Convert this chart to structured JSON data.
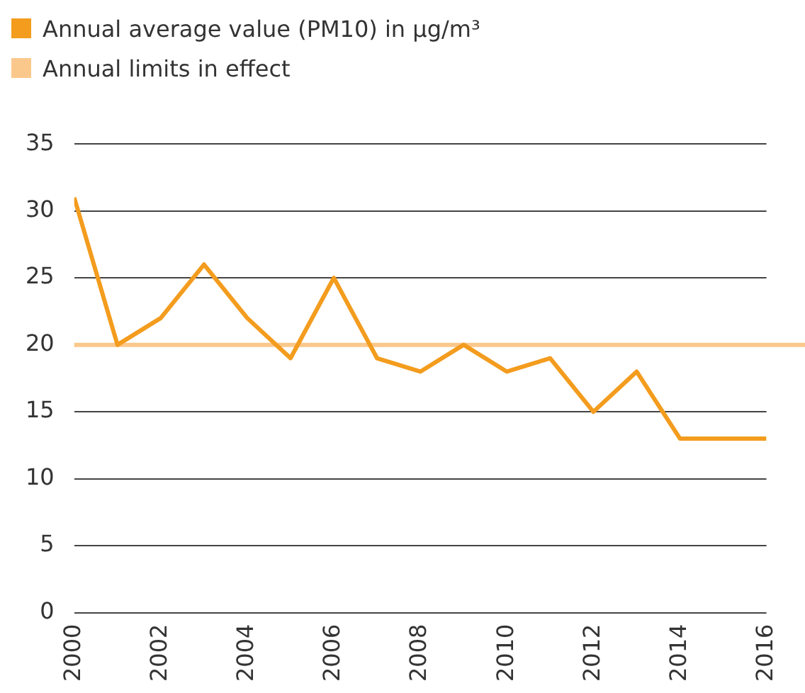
{
  "chart_data": {
    "type": "line",
    "x": [
      2000,
      2001,
      2002,
      2003,
      2004,
      2005,
      2006,
      2007,
      2008,
      2009,
      2010,
      2011,
      2012,
      2013,
      2014,
      2015,
      2016
    ],
    "series": [
      {
        "name": "Annual average value (PM10) in µg/m³",
        "color": "#f39c1e",
        "values": [
          31,
          20,
          22,
          26,
          22,
          19,
          25,
          19,
          18,
          20,
          18,
          19,
          15,
          18,
          13,
          13,
          13
        ]
      }
    ],
    "ref_lines": [
      {
        "axis": "y",
        "value": 20,
        "label": "Annual limits in effect",
        "color": "#fbc88c"
      }
    ],
    "xlim": [
      2000,
      2016
    ],
    "xticks": [
      2000,
      2002,
      2004,
      2006,
      2008,
      2010,
      2012,
      2014,
      2016
    ],
    "ylim": [
      0,
      35
    ],
    "yticks": [
      0,
      5,
      10,
      15,
      20,
      25,
      30,
      35
    ],
    "grid": "y",
    "legend": "top left",
    "marker": "none",
    "line_style": "solid"
  }
}
